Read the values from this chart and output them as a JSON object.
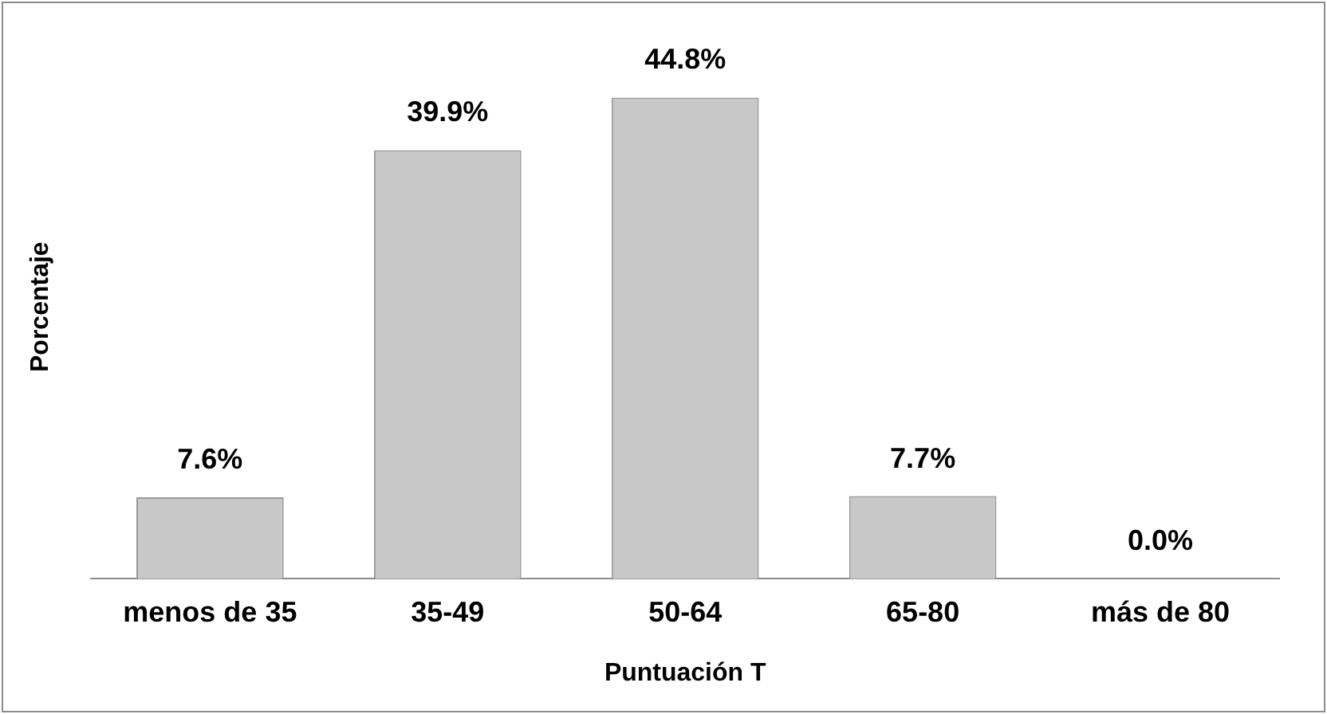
{
  "chart_data": {
    "type": "bar",
    "xlabel": "Puntuación T",
    "ylabel": "Porcentaje",
    "categories": [
      "menos de 35",
      "35-49",
      "50-64",
      "65-80",
      "más de 80"
    ],
    "values": [
      7.6,
      39.9,
      44.8,
      7.7,
      0.0
    ],
    "value_labels": [
      "7.6%",
      "39.9%",
      "44.8%",
      "7.7%",
      "0.0%"
    ],
    "color": "#c8c8c8",
    "grid": false,
    "legend": false
  }
}
